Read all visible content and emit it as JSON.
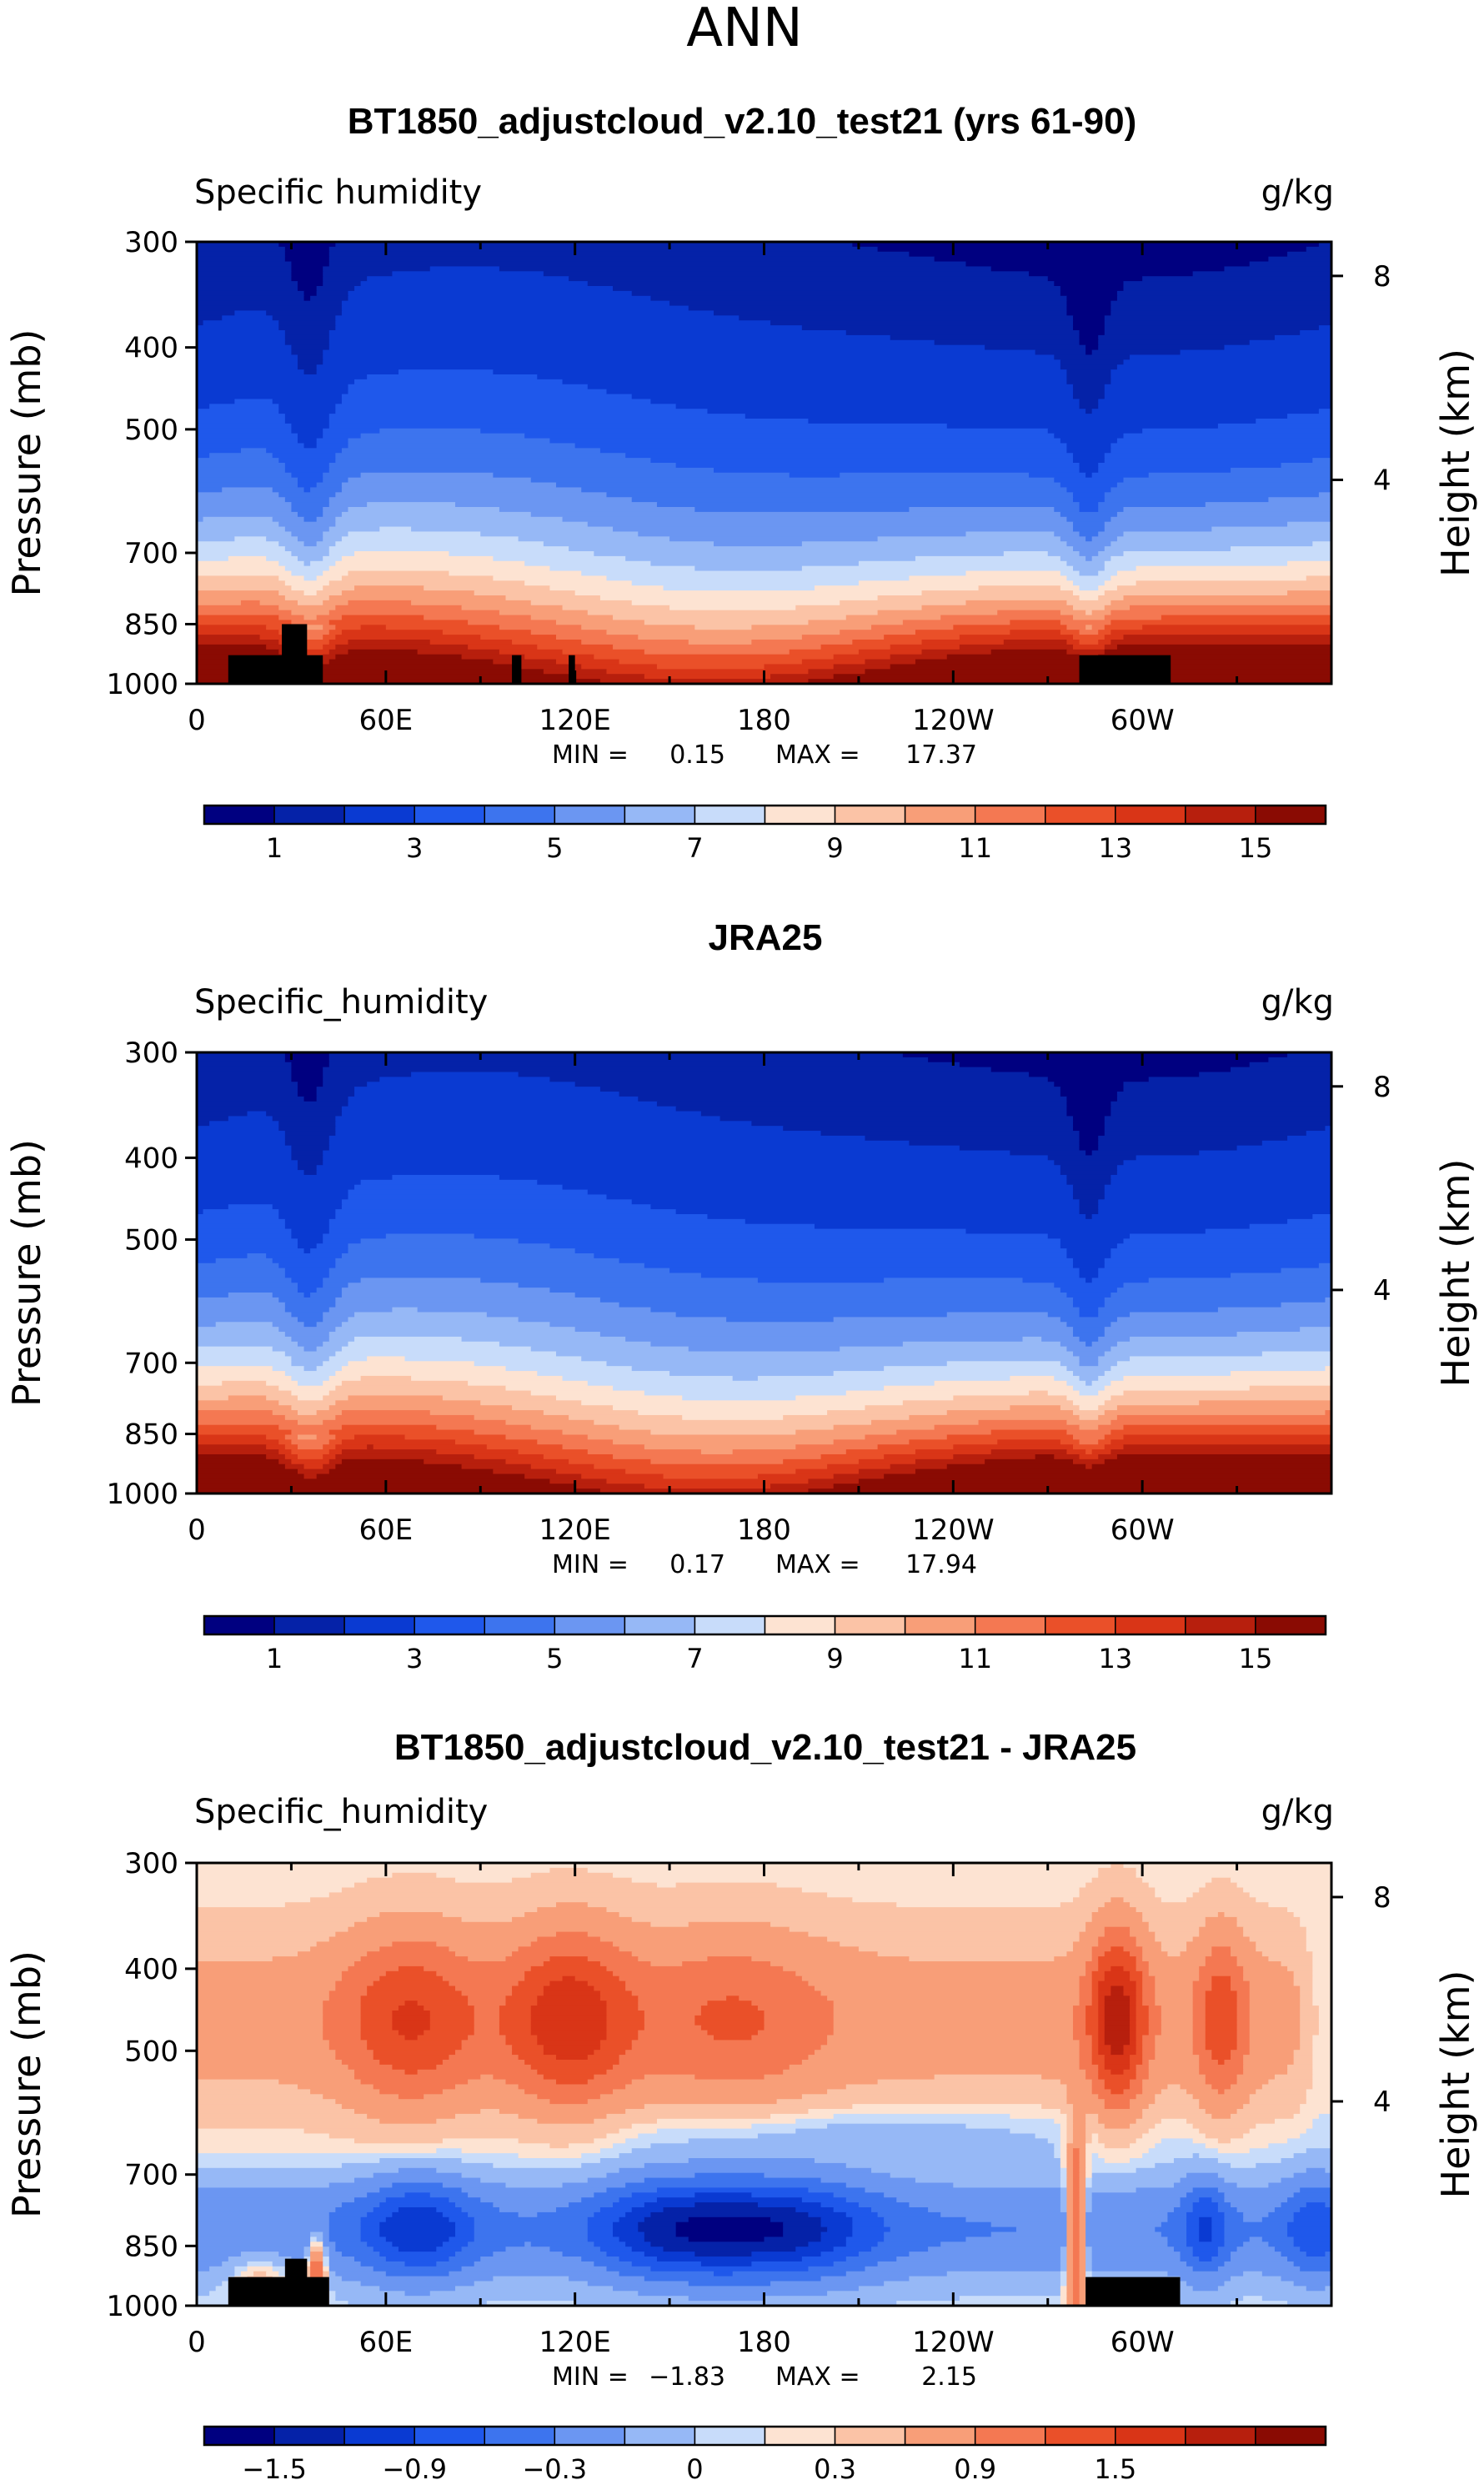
{
  "main_title": "ANN",
  "colors": {
    "abs_scale": [
      "#000080",
      "#0522a8",
      "#0a3ad2",
      "#1f58eb",
      "#3d74ee",
      "#6b96f2",
      "#96b8f6",
      "#c8dcfa",
      "#fde3d2",
      "#fbc3a6",
      "#f89e78",
      "#f47852",
      "#ea5029",
      "#d93517",
      "#b71f0d",
      "#8a0b03"
    ],
    "diff_scale": [
      "#000080",
      "#0522a8",
      "#0a3ad2",
      "#1f58eb",
      "#3d74ee",
      "#6b96f2",
      "#96b8f6",
      "#c8dcfa",
      "#fde3d2",
      "#fbc3a6",
      "#f89e78",
      "#f47852",
      "#ea5029",
      "#d93517",
      "#b71f0d",
      "#8a0b03"
    ],
    "land": "#000000"
  },
  "chart_data": [
    {
      "type": "contour",
      "title": "BT1850_adjustcloud_v2.10_test21 (yrs 61-90)",
      "variable": "Specific humidity",
      "units": "g/kg",
      "ylabel": "Pressure (mb)",
      "ylabel_right": "Height (km)",
      "y_ticks": [
        "300",
        "400",
        "500",
        "700",
        "850",
        "1000"
      ],
      "y_tick_values": [
        300,
        400,
        500,
        700,
        850,
        1000
      ],
      "y_right_ticks": [
        "8",
        "4"
      ],
      "x_ticks": [
        "0",
        "60E",
        "120E",
        "180",
        "120W",
        "60W"
      ],
      "x_tick_values": [
        0,
        60,
        120,
        180,
        240,
        300
      ],
      "xlim": [
        0,
        360
      ],
      "ylim": [
        1000,
        300
      ],
      "min_label": "MIN =",
      "min": "0.15",
      "max_label": "MAX =",
      "max": "17.37",
      "colorbar_labels": [
        "1",
        "3",
        "5",
        "7",
        "9",
        "11",
        "13",
        "15"
      ],
      "colorbar_levels": [
        0.5,
        1,
        2,
        3,
        4,
        5,
        6,
        7,
        8,
        9,
        10,
        11,
        12,
        13,
        14,
        15
      ],
      "land_blocks": [
        {
          "lon_start": 10,
          "lon_end": 40,
          "p_top": 925
        },
        {
          "lon_start": 27,
          "lon_end": 35,
          "p_top": 850
        },
        {
          "lon_start": 100,
          "lon_end": 103,
          "p_top": 925
        },
        {
          "lon_start": 118,
          "lon_end": 120,
          "p_top": 925
        },
        {
          "lon_start": 280,
          "lon_end": 309,
          "p_top": 925
        }
      ]
    },
    {
      "type": "contour",
      "title": "JRA25",
      "variable": "Specific_humidity",
      "units": "g/kg",
      "ylabel": "Pressure (mb)",
      "ylabel_right": "Height (km)",
      "y_ticks": [
        "300",
        "400",
        "500",
        "700",
        "850",
        "1000"
      ],
      "y_tick_values": [
        300,
        400,
        500,
        700,
        850,
        1000
      ],
      "y_right_ticks": [
        "8",
        "4"
      ],
      "x_ticks": [
        "0",
        "60E",
        "120E",
        "180",
        "120W",
        "60W"
      ],
      "x_tick_values": [
        0,
        60,
        120,
        180,
        240,
        300
      ],
      "xlim": [
        0,
        360
      ],
      "ylim": [
        1000,
        300
      ],
      "min_label": "MIN =",
      "min": "0.17",
      "max_label": "MAX =",
      "max": "17.94",
      "colorbar_labels": [
        "1",
        "3",
        "5",
        "7",
        "9",
        "11",
        "13",
        "15"
      ],
      "colorbar_levels": [
        0.5,
        1,
        2,
        3,
        4,
        5,
        6,
        7,
        8,
        9,
        10,
        11,
        12,
        13,
        14,
        15
      ],
      "land_blocks": []
    },
    {
      "type": "contour",
      "title": "BT1850_adjustcloud_v2.10_test21 - JRA25",
      "variable": "Specific_humidity",
      "units": "g/kg",
      "ylabel": "Pressure (mb)",
      "ylabel_right": "Height (km)",
      "y_ticks": [
        "300",
        "400",
        "500",
        "700",
        "850",
        "1000"
      ],
      "y_tick_values": [
        300,
        400,
        500,
        700,
        850,
        1000
      ],
      "y_right_ticks": [
        "8",
        "4"
      ],
      "x_ticks": [
        "0",
        "60E",
        "120E",
        "180",
        "120W",
        "60W"
      ],
      "x_tick_values": [
        0,
        60,
        120,
        180,
        240,
        300
      ],
      "xlim": [
        0,
        360
      ],
      "ylim": [
        1000,
        300
      ],
      "min_label": "MIN =",
      "min": "−1.83",
      "max_label": "MAX =",
      "max": "2.15",
      "colorbar_labels": [
        "−1.5",
        "−0.9",
        "−0.3",
        "0",
        "0.3",
        "0.9",
        "1.5"
      ],
      "colorbar_levels": [
        -1.8,
        -1.5,
        -1.2,
        -0.9,
        -0.6,
        -0.3,
        -0.1,
        0,
        0.1,
        0.3,
        0.6,
        0.9,
        1.2,
        1.5,
        1.8
      ],
      "land_blocks": [
        {
          "lon_start": 10,
          "lon_end": 42,
          "p_top": 925
        },
        {
          "lon_start": 28,
          "lon_end": 35,
          "p_top": 880
        },
        {
          "lon_start": 282,
          "lon_end": 312,
          "p_top": 925
        }
      ]
    }
  ]
}
